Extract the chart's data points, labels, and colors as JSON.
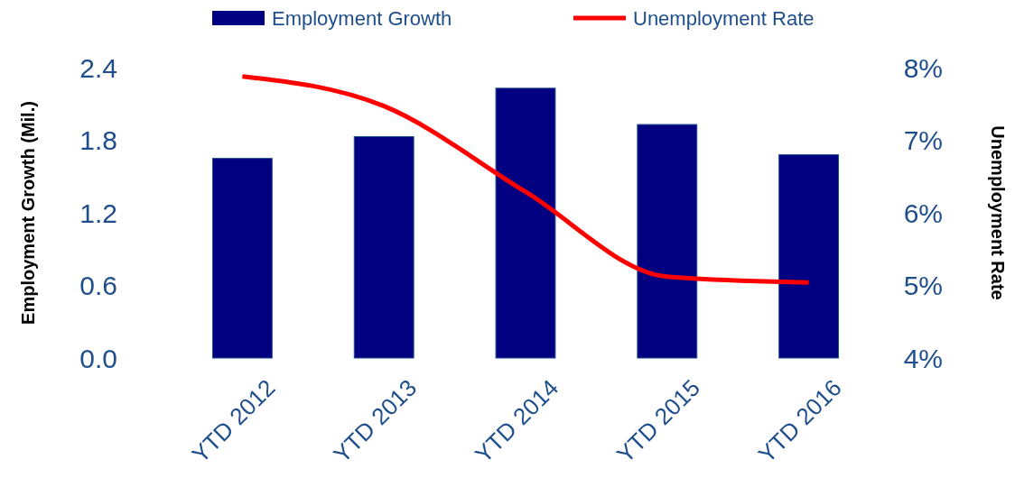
{
  "chart_data": {
    "type": "bar",
    "categories": [
      "YTD 2012",
      "YTD 2013",
      "YTD 2014",
      "YTD 2015",
      "YTD 2016"
    ],
    "ylabel": "Employment Growth (Mil.)",
    "y2label": "Unemployment Rate",
    "series": [
      {
        "name": "Employment Growth",
        "color": "#000080",
        "values": [
          1.65,
          1.83,
          2.23,
          1.93,
          1.68
        ]
      },
      {
        "name": "Unemployment Rate",
        "type": "line",
        "axis": "y2",
        "color": "#ff0000",
        "values": [
          7.88,
          7.47,
          6.29,
          5.12,
          5.04
        ]
      }
    ],
    "ylim": [
      0,
      2.4
    ],
    "yticks": [
      {
        "value": 0,
        "label": "0.0"
      },
      0.6,
      1.2,
      1.8,
      2.4
    ],
    "y2lim": [
      4,
      8
    ],
    "y2ticks": [
      {
        "value": 4,
        "label": "4%"
      },
      {
        "value": 5,
        "label": "5%"
      },
      {
        "value": 6,
        "label": "6%"
      },
      {
        "value": 7,
        "label": "7%"
      },
      {
        "value": 8,
        "label": "8%"
      }
    ],
    "legend": "top",
    "grid": false,
    "marker": "none",
    "line_style": "solid"
  }
}
